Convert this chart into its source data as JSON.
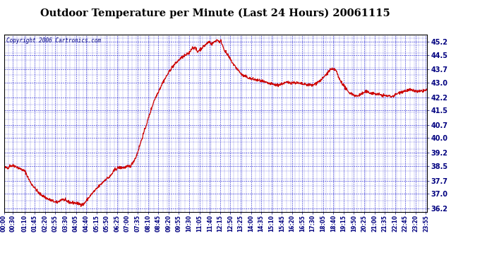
{
  "title": "Outdoor Temperature per Minute (Last 24 Hours) 20061115",
  "copyright": "Copyright 2006 Cartronics.com",
  "background_color": "#ffffff",
  "grid_color": "#0000cc",
  "line_color": "#cc0000",
  "title_color": "#000000",
  "ytick_labels": [
    "36.2",
    "37.0",
    "37.7",
    "38.5",
    "39.2",
    "40.0",
    "40.7",
    "41.5",
    "42.2",
    "43.0",
    "43.7",
    "44.5",
    "45.2"
  ],
  "ytick_vals": [
    36.2,
    37.0,
    37.7,
    38.5,
    39.2,
    40.0,
    40.7,
    41.5,
    42.2,
    43.0,
    43.7,
    44.5,
    45.2
  ],
  "ylim": [
    36.0,
    45.6
  ],
  "xtick_labels": [
    "00:00",
    "00:30",
    "01:10",
    "01:45",
    "02:20",
    "02:55",
    "03:30",
    "04:05",
    "04:40",
    "05:15",
    "05:50",
    "06:25",
    "07:00",
    "07:35",
    "08:10",
    "08:45",
    "09:20",
    "09:55",
    "10:30",
    "11:05",
    "11:40",
    "12:15",
    "12:50",
    "13:25",
    "14:00",
    "14:35",
    "15:10",
    "15:45",
    "16:20",
    "16:55",
    "17:30",
    "18:05",
    "18:40",
    "19:15",
    "19:50",
    "20:25",
    "21:00",
    "21:35",
    "22:10",
    "22:45",
    "23:20",
    "23:55"
  ]
}
